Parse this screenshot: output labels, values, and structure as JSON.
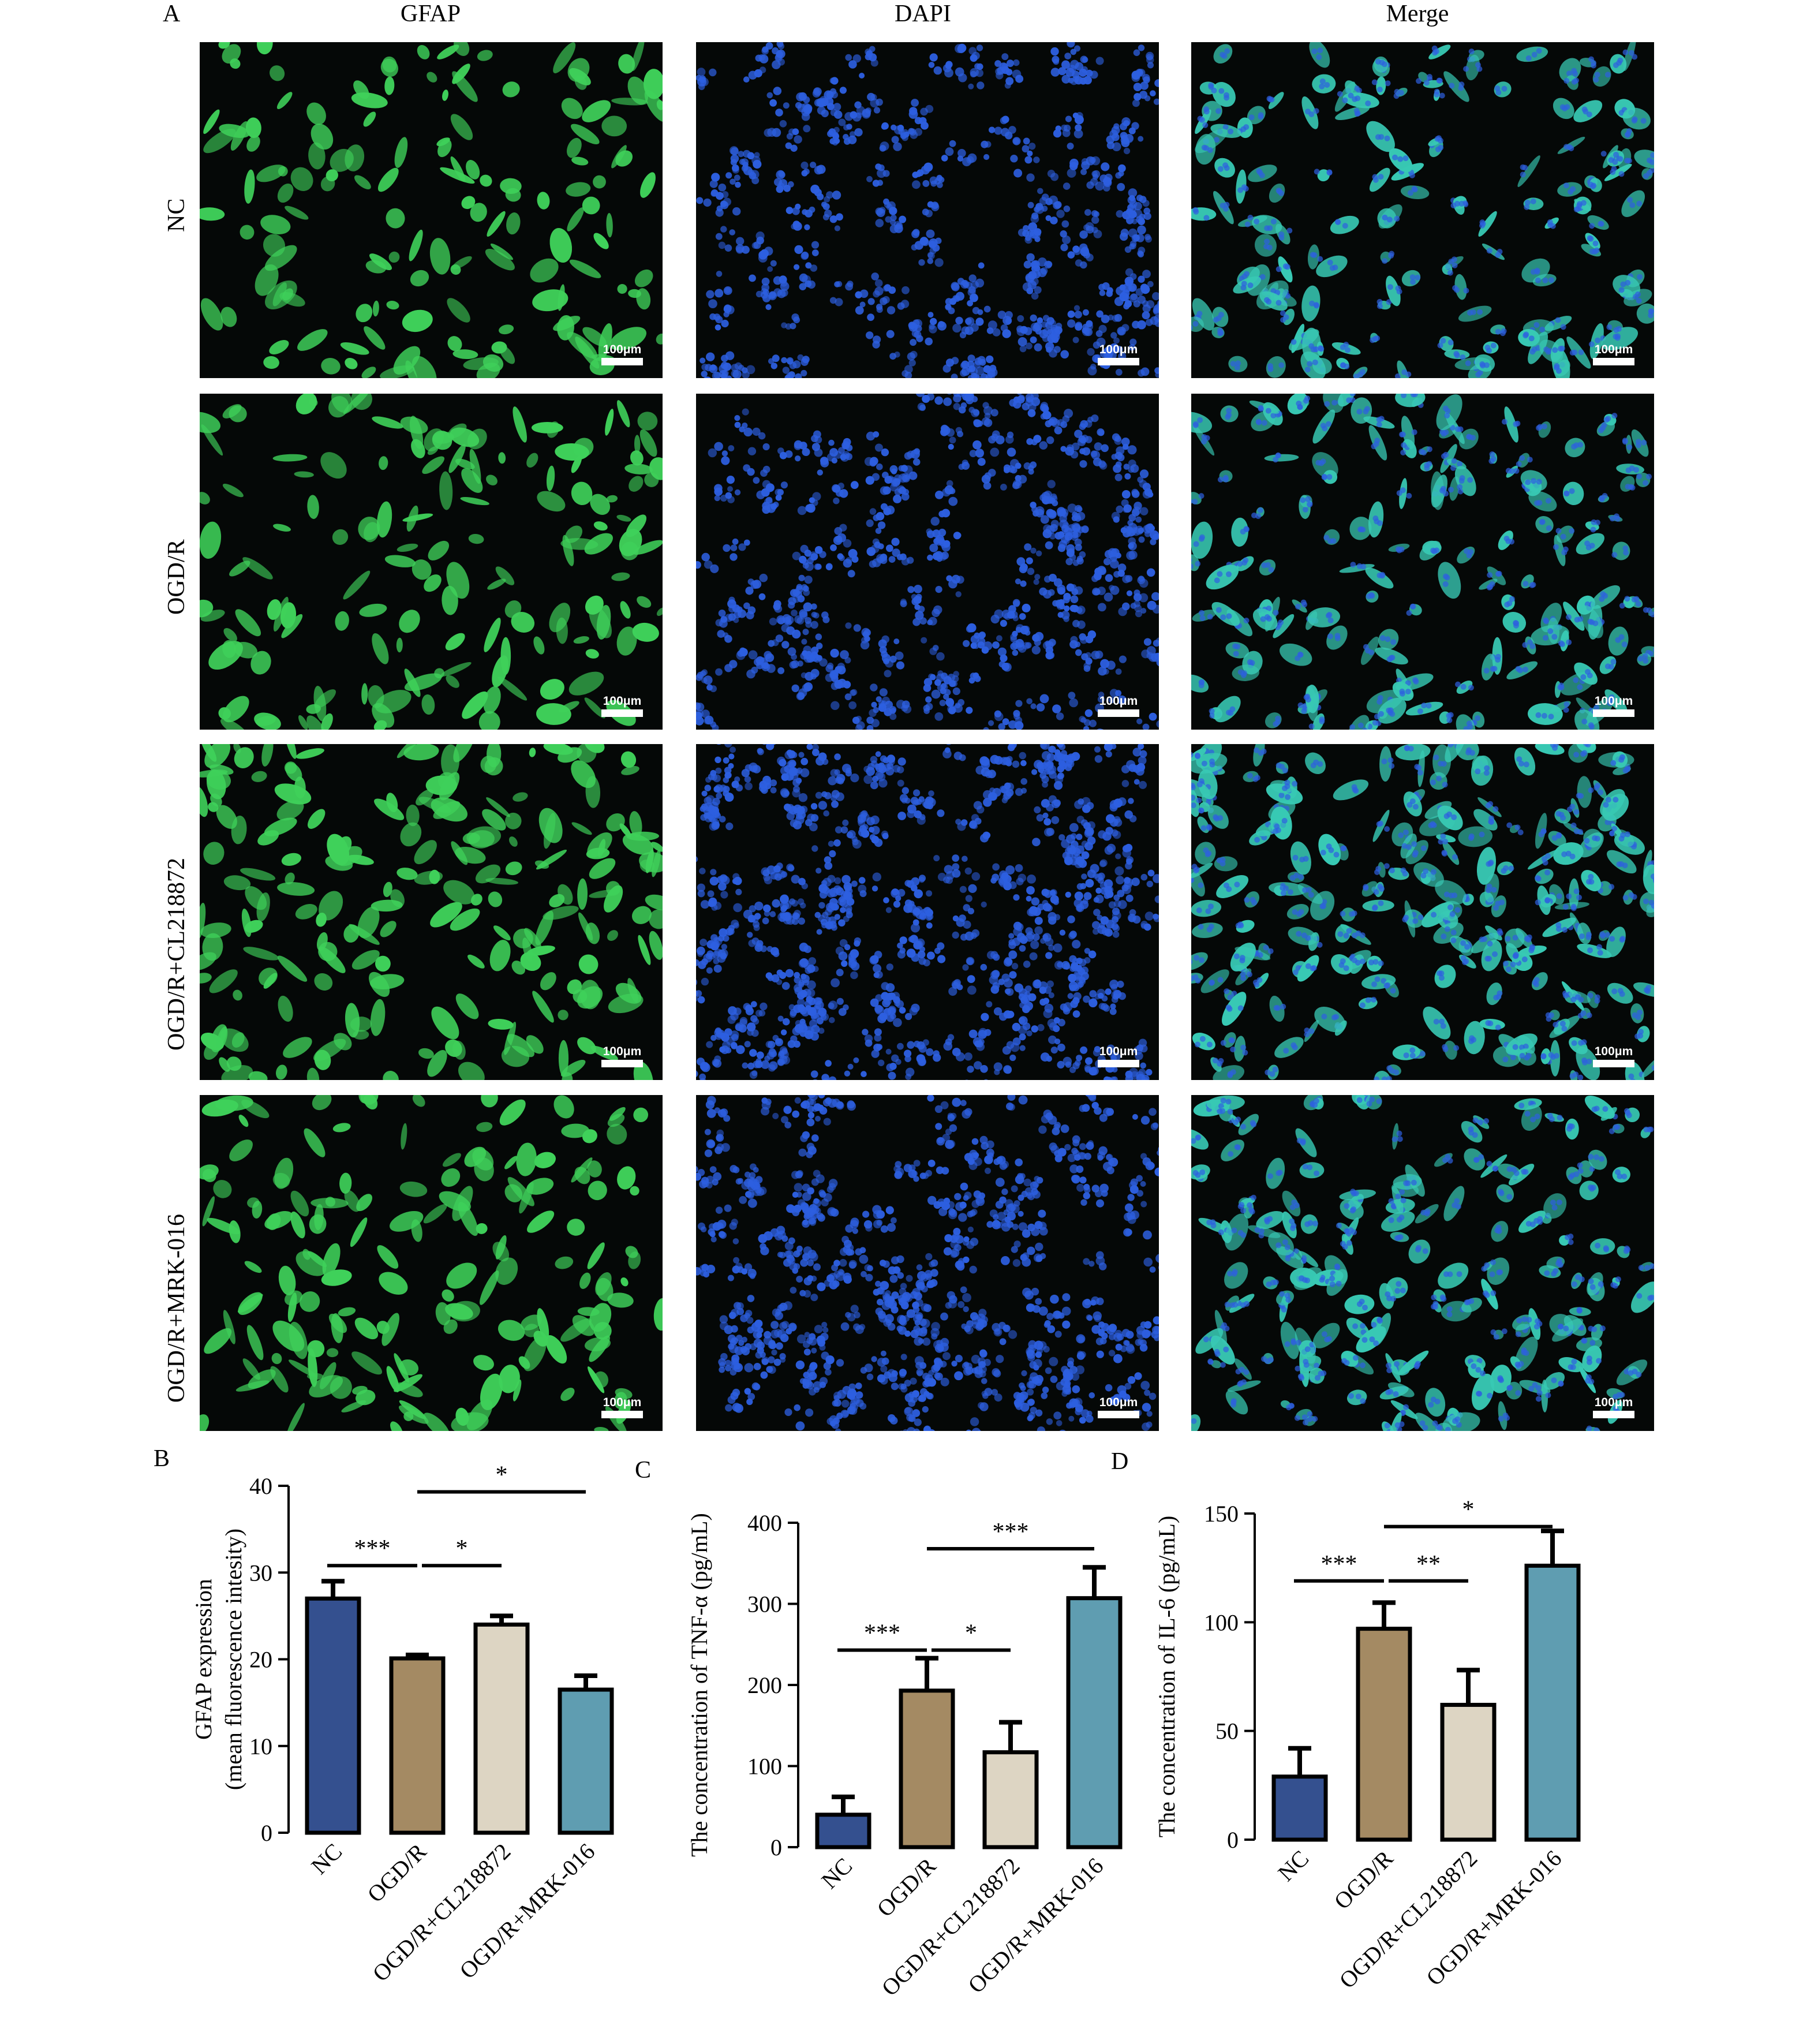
{
  "panel_a": {
    "letter": "A",
    "columns": [
      "GFAP",
      "DAPI",
      "Merge"
    ],
    "rows": [
      "NC",
      "OGD/R",
      "OGD/R+CL218872",
      "OGD/R+MRK-016"
    ],
    "scale_bar": "100μm",
    "channel_colors": {
      "GFAP": "#3fd15a",
      "DAPI": "#2d5fe0",
      "Merge": "#38c9b4"
    }
  },
  "chart_data": [
    {
      "type": "bar",
      "letter": "B",
      "categories": [
        "NC",
        "OGD/R",
        "OGD/R+CL218872",
        "OGD/R+MRK-016"
      ],
      "values": [
        27,
        20.1,
        24,
        16.5
      ],
      "errors": [
        2,
        0.4,
        1,
        1.6
      ],
      "ylabel_lines": [
        "GFAP expression",
        "(mean fluorescence intesity)"
      ],
      "ylim": [
        0,
        40
      ],
      "yticks": [
        0,
        10,
        20,
        30,
        40
      ],
      "colors": [
        "#34508f",
        "#a48a63",
        "#ddd5c3",
        "#5f9db1"
      ],
      "significance": [
        {
          "from": 0,
          "to": 1,
          "label": "***",
          "y": 30.8
        },
        {
          "from": 1,
          "to": 2,
          "label": "*",
          "y": 30.8
        },
        {
          "from": 1,
          "to": 3,
          "label": "*",
          "y": 39.3
        }
      ]
    },
    {
      "type": "bar",
      "letter": "C",
      "categories": [
        "NC",
        "OGD/R",
        "OGD/R+CL218872",
        "OGD/R+MRK-016"
      ],
      "values": [
        40,
        193,
        117,
        307
      ],
      "errors": [
        22,
        40,
        37,
        38
      ],
      "ylabel_lines": [
        "The concentration of TNF-α (pg/mL)"
      ],
      "ylim": [
        0,
        400
      ],
      "yticks": [
        0,
        100,
        200,
        300,
        400
      ],
      "colors": [
        "#34508f",
        "#a48a63",
        "#ddd5c3",
        "#5f9db1"
      ],
      "significance": [
        {
          "from": 0,
          "to": 1,
          "label": "***",
          "y": 243
        },
        {
          "from": 1,
          "to": 2,
          "label": "*",
          "y": 243
        },
        {
          "from": 1,
          "to": 3,
          "label": "***",
          "y": 368
        }
      ]
    },
    {
      "type": "bar",
      "letter": "D",
      "categories": [
        "NC",
        "OGD/R",
        "OGD/R+CL218872",
        "OGD/R+MRK-016"
      ],
      "values": [
        29,
        97,
        62,
        126
      ],
      "errors": [
        13,
        12,
        16,
        16
      ],
      "ylabel_lines": [
        "The concentration of IL-6 (pg/mL)"
      ],
      "ylim": [
        0,
        150
      ],
      "yticks": [
        0,
        50,
        100,
        150
      ],
      "colors": [
        "#34508f",
        "#a48a63",
        "#ddd5c3",
        "#5f9db1"
      ],
      "significance": [
        {
          "from": 0,
          "to": 1,
          "label": "***",
          "y": 119
        },
        {
          "from": 1,
          "to": 2,
          "label": "**",
          "y": 119
        },
        {
          "from": 1,
          "to": 3,
          "label": "*",
          "y": 144
        }
      ]
    }
  ]
}
